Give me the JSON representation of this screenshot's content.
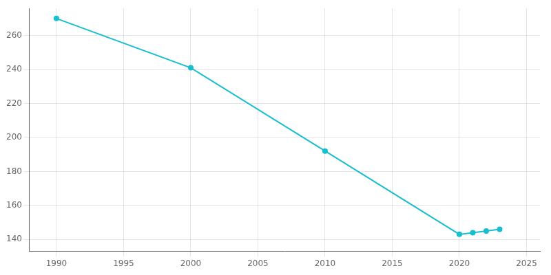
{
  "chart_data": {
    "type": "line",
    "x": [
      1990,
      2000,
      2010,
      2020,
      2021,
      2022,
      2023
    ],
    "values": [
      270,
      241,
      192,
      143,
      144,
      145,
      146
    ],
    "color": "#17BECF",
    "marker": "circle",
    "xlim": [
      1988,
      2026
    ],
    "ylim": [
      133,
      276
    ],
    "xticks": [
      1990,
      1995,
      2000,
      2005,
      2010,
      2015,
      2020,
      2025
    ],
    "yticks": [
      140,
      160,
      180,
      200,
      220,
      240,
      260
    ],
    "grid": true
  }
}
